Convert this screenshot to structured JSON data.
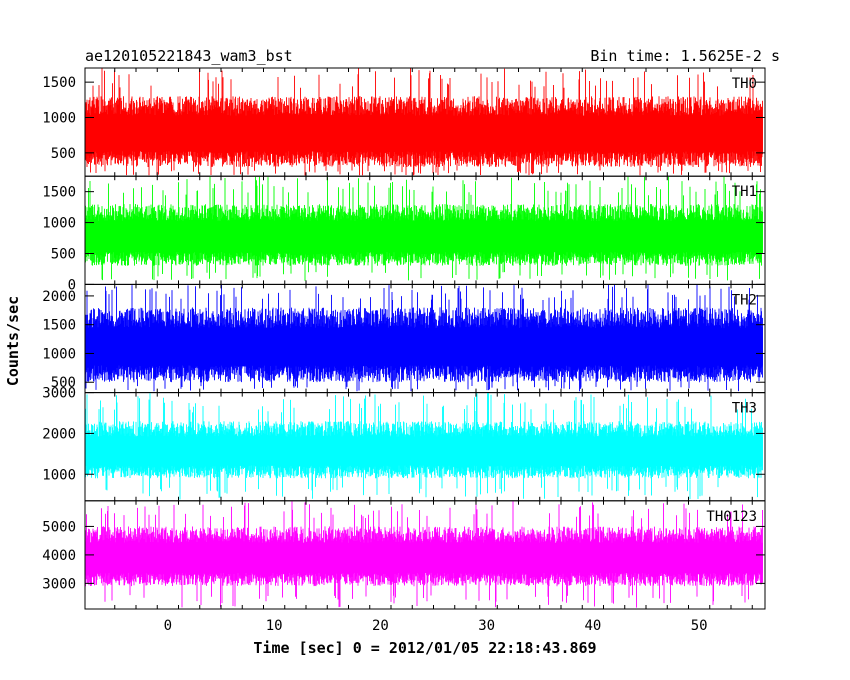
{
  "chart_data": {
    "type": "line",
    "title": "ae120105221843_wam3_bst",
    "bin_time_label": "Bin time: 1.5625E-2 s",
    "xlabel": "Time [sec] 0 = 2012/01/05 22:18:43.869",
    "ylabel": "Counts/sec",
    "xlim": [
      -7.8,
      56.2
    ],
    "x_ticks": [
      0,
      10,
      20,
      30,
      40,
      50
    ],
    "x_tick_labels": [
      "0",
      "10",
      "20",
      "30",
      "40",
      "50"
    ],
    "data_range": [
      -7.8,
      56.0
    ],
    "bin_time_s": 0.015625,
    "grid": false,
    "panels": [
      {
        "name": "TH0",
        "color": "#ff0000",
        "ylim": [
          170,
          1700
        ],
        "y_ticks": [
          500,
          1000,
          1500
        ],
        "y_tick_labels": [
          "500",
          "1000",
          "1500"
        ],
        "typical_min": 300,
        "typical_max": 1300,
        "max": 1700,
        "min": 180
      },
      {
        "name": "TH1",
        "color": "#00ff00",
        "ylim": [
          0,
          1750
        ],
        "y_ticks": [
          0,
          500,
          1000,
          1500
        ],
        "y_tick_labels": [
          "0",
          "500",
          "1000",
          "1500"
        ],
        "typical_min": 300,
        "typical_max": 1300,
        "max": 1750,
        "min": 60
      },
      {
        "name": "TH2",
        "color": "#0000ff",
        "ylim": [
          320,
          2200
        ],
        "y_ticks": [
          500,
          1000,
          1500,
          2000
        ],
        "y_tick_labels": [
          "500",
          "1000",
          "1500",
          "2000"
        ],
        "typical_min": 500,
        "typical_max": 1800,
        "max": 2200,
        "min": 340
      },
      {
        "name": "TH3",
        "color": "#00ffff",
        "ylim": [
          350,
          3000
        ],
        "y_ticks": [
          1000,
          2000,
          3000
        ],
        "y_tick_labels": [
          "1000",
          "2000",
          "3000"
        ],
        "typical_min": 900,
        "typical_max": 2300,
        "max": 3000,
        "min": 380
      },
      {
        "name": "TH0123",
        "color": "#ff00ff",
        "ylim": [
          2100,
          5900
        ],
        "y_ticks": [
          3000,
          4000,
          5000
        ],
        "y_tick_labels": [
          "3000",
          "4000",
          "5000"
        ],
        "typical_min": 2900,
        "typical_max": 5000,
        "max": 5900,
        "min": 2150
      }
    ]
  }
}
